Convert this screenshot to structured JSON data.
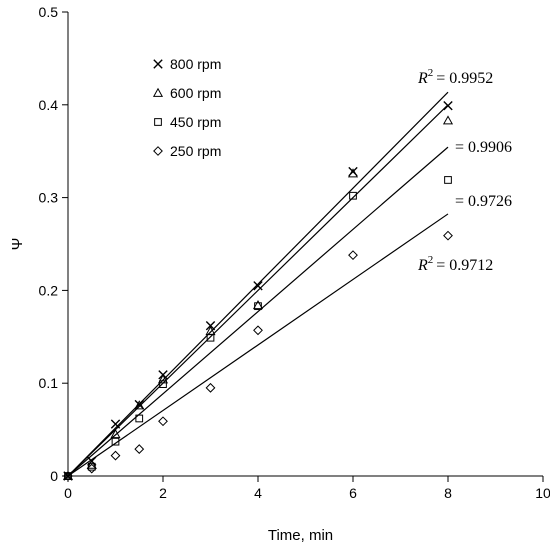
{
  "chart_data": {
    "type": "scatter",
    "title": "",
    "xlabel": "Time, min",
    "ylabel": "Ψ",
    "xlim": [
      0,
      10
    ],
    "ylim": [
      0,
      0.5
    ],
    "xticks": [
      0,
      2,
      4,
      6,
      8,
      10
    ],
    "yticks": [
      0,
      0.1,
      0.2,
      0.3,
      0.4,
      0.5
    ],
    "grid": false,
    "legend_placement": "top-left",
    "series": [
      {
        "name": "800 rpm",
        "marker": "x",
        "x": [
          0,
          0.5,
          1,
          1.5,
          2,
          3,
          4,
          6,
          8
        ],
        "y": [
          0,
          0.016,
          0.056,
          0.077,
          0.109,
          0.162,
          0.205,
          0.328,
          0.399
        ],
        "fit_slope": 0.0517,
        "r2_text": "= 0.9952"
      },
      {
        "name": "600 rpm",
        "marker": "triangle",
        "x": [
          0,
          0.5,
          1,
          1.5,
          2,
          3,
          4,
          6,
          8
        ],
        "y": [
          0,
          0.012,
          0.045,
          0.076,
          0.104,
          0.156,
          0.184,
          0.326,
          0.383
        ],
        "fit_slope": 0.05,
        "r2_text": "= 0.9906"
      },
      {
        "name": "450 rpm",
        "marker": "square",
        "x": [
          0,
          0.5,
          1,
          1.5,
          2,
          3,
          4,
          6,
          8
        ],
        "y": [
          0,
          0.01,
          0.037,
          0.062,
          0.099,
          0.149,
          0.183,
          0.302,
          0.319
        ],
        "fit_slope": 0.0443,
        "r2_text": "= 0.9726"
      },
      {
        "name": "250 rpm",
        "marker": "diamond",
        "x": [
          0,
          0.5,
          1,
          1.5,
          2,
          3,
          4,
          6,
          8
        ],
        "y": [
          0,
          0.008,
          0.022,
          0.029,
          0.059,
          0.095,
          0.157,
          0.238,
          0.259
        ],
        "fit_slope": 0.0353,
        "r2_text": "= 0.9712"
      }
    ]
  }
}
